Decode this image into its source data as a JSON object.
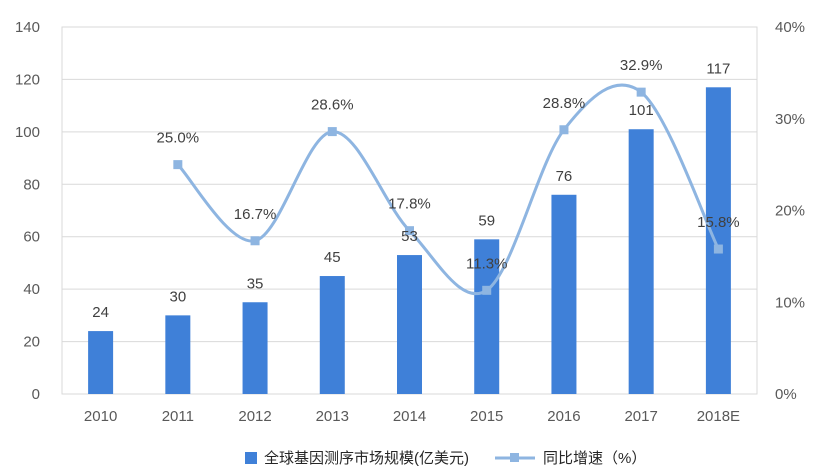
{
  "chart_data": {
    "type": "bar+line",
    "categories": [
      "2010",
      "2011",
      "2012",
      "2013",
      "2014",
      "2015",
      "2016",
      "2017",
      "2018E"
    ],
    "series": [
      {
        "name": "全球基因测序市场规模(亿美元)",
        "type": "bar",
        "axis": "left",
        "values": [
          24,
          30,
          35,
          45,
          53,
          59,
          76,
          101,
          117
        ],
        "labels": [
          "24",
          "30",
          "35",
          "45",
          "53",
          "59",
          "76",
          "101",
          "117"
        ]
      },
      {
        "name": "同比增速（%）",
        "type": "line",
        "axis": "right",
        "values": [
          null,
          25.0,
          16.7,
          28.6,
          17.8,
          11.3,
          28.8,
          32.9,
          15.8
        ],
        "labels": [
          "",
          "25.0%",
          "16.7%",
          "28.6%",
          "17.8%",
          "11.3%",
          "28.8%",
          "32.9%",
          "15.8%"
        ]
      }
    ],
    "left_axis": {
      "ylim": [
        0,
        140
      ],
      "ticks": [
        "0",
        "20",
        "40",
        "60",
        "80",
        "100",
        "120",
        "140"
      ]
    },
    "right_axis": {
      "ylim": [
        0,
        40
      ],
      "ticks": [
        "0%",
        "10%",
        "20%",
        "30%",
        "40%"
      ]
    },
    "grid": true,
    "legend_position": "bottom",
    "colors": {
      "bar": "#3F80D8",
      "line": "#8EB5E1",
      "grid": "#D9D9D9",
      "text": "#595959"
    }
  }
}
